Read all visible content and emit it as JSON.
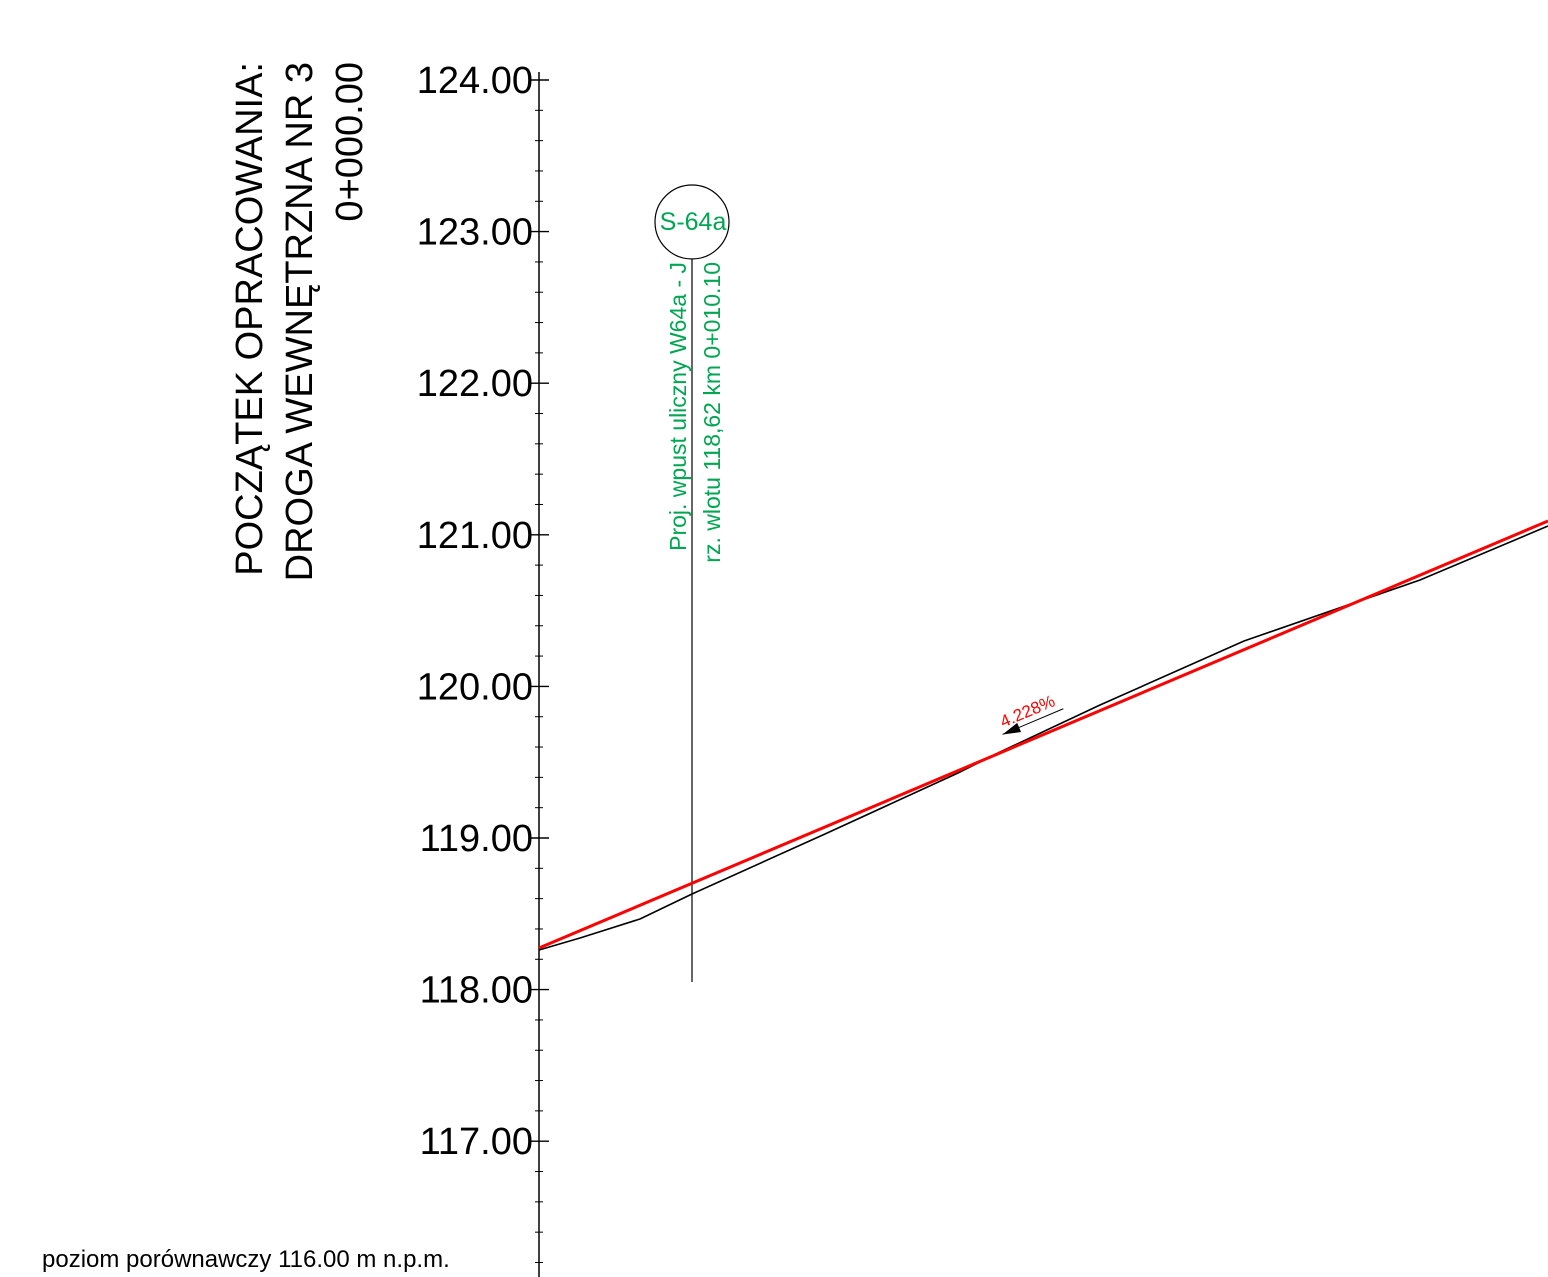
{
  "title": {
    "line1": "POCZĄTEK OPRACOWANIA:",
    "line2": "DROGA WEWNĘTRZNA NR 3",
    "chainage": "0+000.00"
  },
  "datum_label": "poziom porównawczy  116.00 m n.p.m.",
  "axis": {
    "min": 116.0,
    "max": 124.0,
    "major_step": 1.0,
    "minor_step": 0.2,
    "labels": [
      "124.00",
      "123.00",
      "122.00",
      "121.00",
      "120.00",
      "119.00",
      "118.00",
      "117.00"
    ]
  },
  "structure": {
    "id": "S-64a",
    "description": "Proj. wpust uliczny W64a - J",
    "inlet_text": "rz. wlotu 118,62   km 0+010.10"
  },
  "design_line": {
    "grade_label": "4.228%",
    "color": "#ff0000"
  },
  "terrain_line": {
    "color": "#000000"
  },
  "colors": {
    "accent_green": "#00a651",
    "design_red": "#ff0000"
  }
}
